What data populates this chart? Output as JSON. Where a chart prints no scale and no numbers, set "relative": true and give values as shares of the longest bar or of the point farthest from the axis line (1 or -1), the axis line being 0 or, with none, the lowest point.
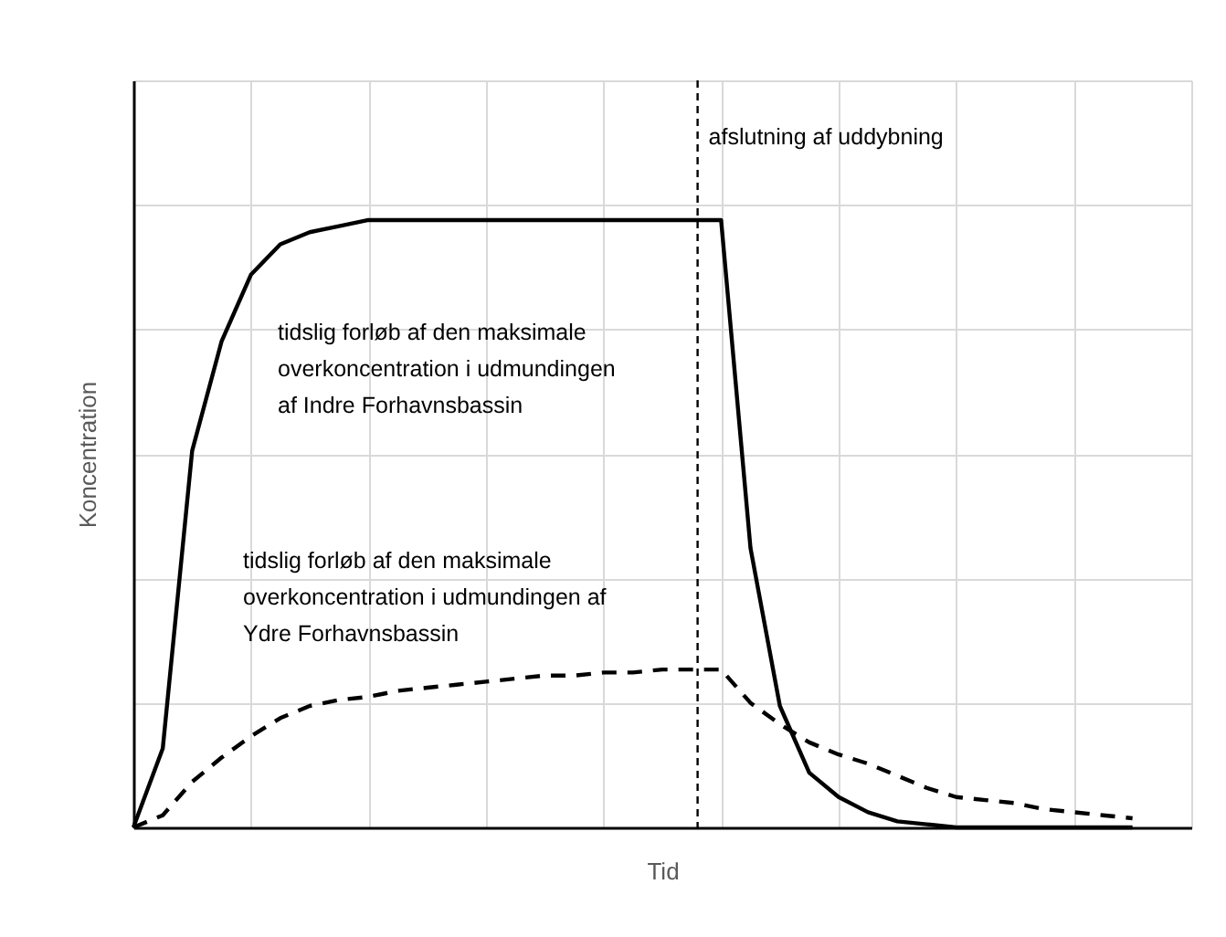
{
  "chart_data": {
    "type": "line",
    "relative": true,
    "xlabel": "Tid",
    "ylabel": "Koncentration",
    "grid": true,
    "tick_labels": false,
    "marker": "none",
    "categories": [
      null,
      null,
      null,
      null,
      null,
      null,
      null,
      null,
      null,
      null,
      null,
      null,
      null,
      null,
      null,
      null,
      null,
      null,
      null,
      null,
      null,
      null,
      null,
      null,
      null,
      null,
      null,
      null,
      null,
      null,
      null,
      null,
      null,
      null,
      null,
      null,
      null
    ],
    "series": [
      {
        "name": "tidslig forløb af den maksimale overkoncentration i udmundingen af Indre Forhavnsbassin",
        "color": "#000000",
        "line_style": "solid",
        "values": [
          0,
          0.13,
          0.62,
          0.8,
          0.91,
          0.96,
          0.98,
          0.99,
          1,
          1,
          1,
          1,
          1,
          1,
          1,
          1,
          1,
          1,
          1,
          1,
          1,
          0.46,
          0.2,
          0.09,
          0.05,
          0.025,
          0.01,
          0.005,
          0,
          0,
          0,
          0,
          0,
          0,
          0,
          null,
          null
        ]
      },
      {
        "name": "tidslig forløb af den maksimale overkoncentration i udmundingen af Ydre Forhavnsbassin",
        "color": "#000000",
        "line_style": "dashed",
        "values": [
          0,
          0.02,
          0.075,
          0.115,
          0.15,
          0.18,
          0.2,
          0.21,
          0.215,
          0.225,
          0.23,
          0.235,
          0.24,
          0.245,
          0.25,
          0.25,
          0.255,
          0.255,
          0.26,
          0.26,
          0.26,
          0.205,
          0.17,
          0.14,
          0.12,
          0.105,
          0.085,
          0.065,
          0.05,
          0.045,
          0.04,
          0.03,
          0.025,
          0.02,
          0.015,
          null,
          null
        ]
      }
    ],
    "annotations": [
      "afslutning af uddybning"
    ]
  }
}
